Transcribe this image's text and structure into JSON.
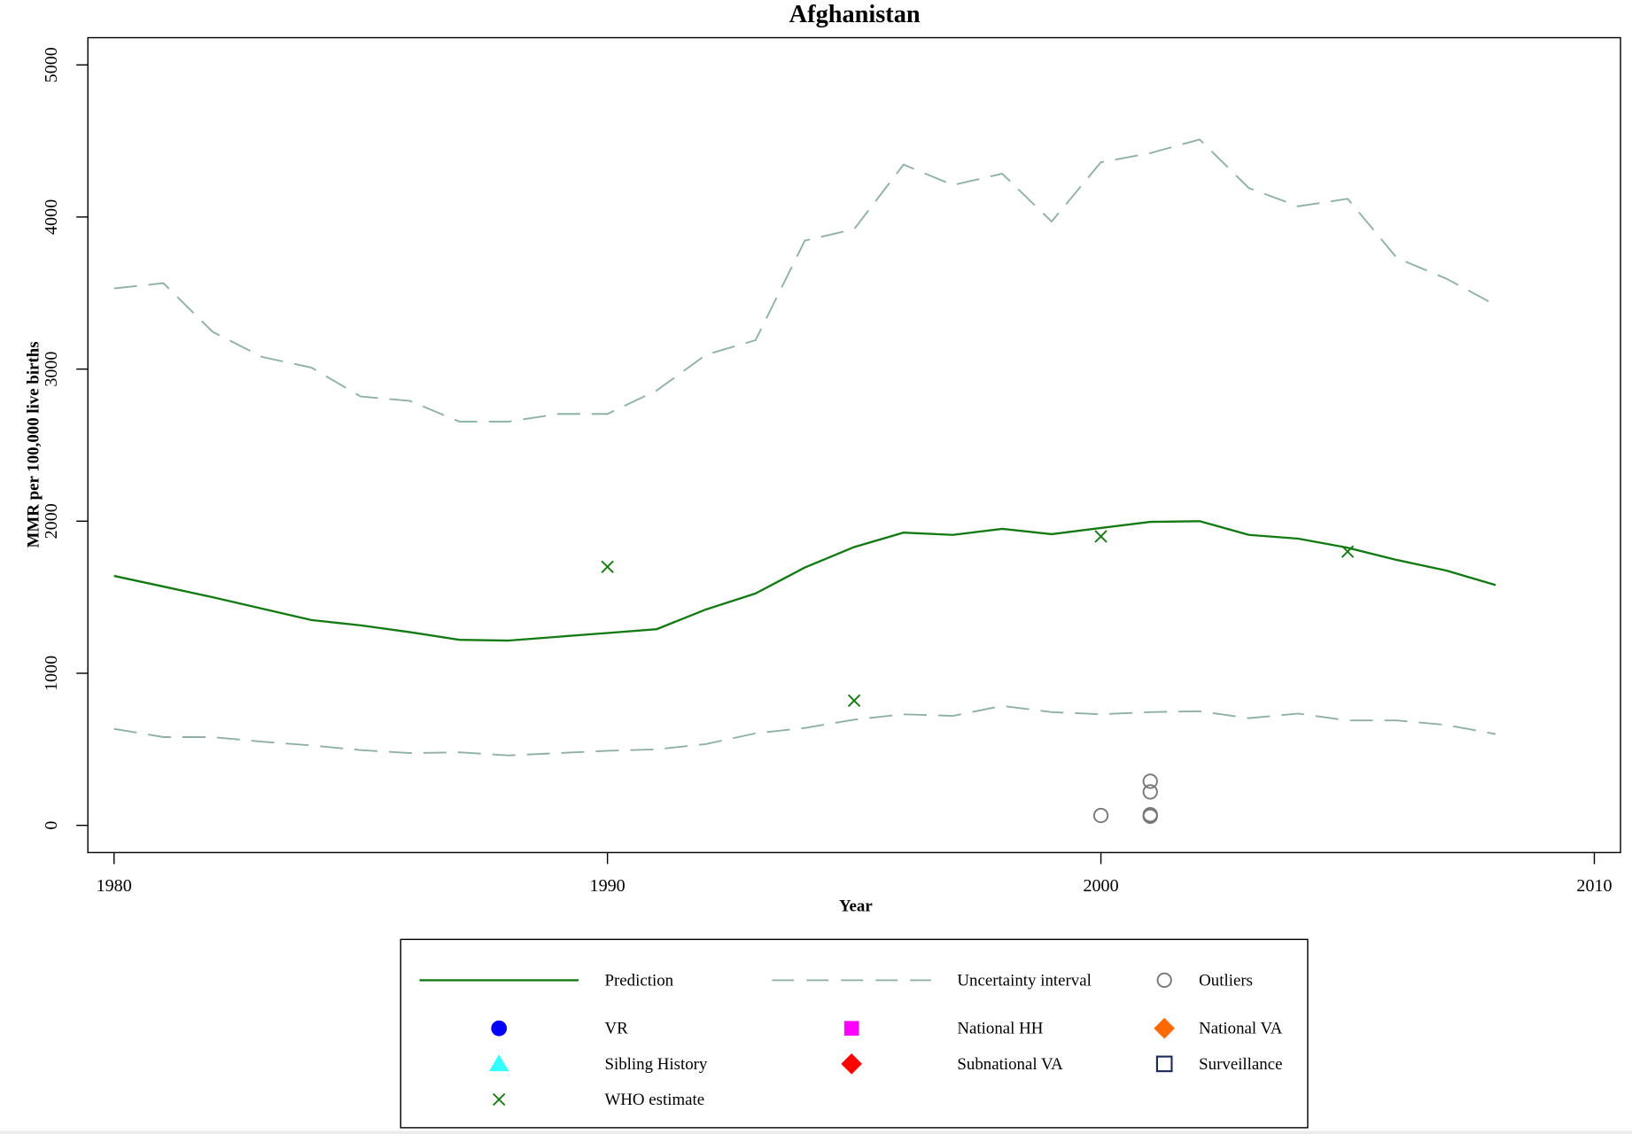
{
  "chart_data": {
    "type": "line",
    "title": "Afghanistan",
    "xlabel": "Year",
    "ylabel": "MMR per 100,000 live births",
    "xlim": [
      1979.47,
      2010.53
    ],
    "ylim": [
      -179,
      5179
    ],
    "x_ticks": [
      1980,
      1990,
      2000,
      2010
    ],
    "y_ticks": [
      0,
      1000,
      2000,
      3000,
      4000,
      5000
    ],
    "grid": false,
    "x": [
      1980,
      1981,
      1982,
      1983,
      1984,
      1985,
      1986,
      1987,
      1988,
      1989,
      1990,
      1991,
      1992,
      1993,
      1994,
      1995,
      1996,
      1997,
      1998,
      1999,
      2000,
      2001,
      2002,
      2003,
      2004,
      2005,
      2006,
      2007,
      2008
    ],
    "series": [
      {
        "name": "Prediction",
        "line_style": "solid",
        "color": "#137a13",
        "values": [
          1640,
          1570,
          1500,
          1425,
          1350,
          1315,
          1270,
          1220,
          1215,
          1240,
          1265,
          1290,
          1420,
          1525,
          1695,
          1830,
          1925,
          1910,
          1950,
          1915,
          1955,
          1995,
          2000,
          1910,
          1885,
          1825,
          1745,
          1675,
          1580
        ]
      },
      {
        "name": "Uncertainty interval",
        "line_style": "dashed",
        "color": "#8fb0a8",
        "upper": [
          3530,
          3565,
          3245,
          3080,
          3010,
          2820,
          2790,
          2655,
          2655,
          2705,
          2705,
          2860,
          3095,
          3190,
          3845,
          3920,
          4345,
          4210,
          4285,
          3970,
          4360,
          4420,
          4510,
          4190,
          4070,
          4120,
          3730,
          3595,
          3420
        ],
        "lower": [
          635,
          580,
          580,
          550,
          525,
          495,
          475,
          480,
          460,
          475,
          490,
          500,
          535,
          605,
          640,
          695,
          730,
          720,
          785,
          745,
          730,
          745,
          750,
          705,
          735,
          690,
          690,
          660,
          600
        ]
      }
    ],
    "markers": [
      {
        "name": "WHO estimate",
        "symbol": "x",
        "color": "#137a13",
        "points": [
          {
            "x": 1990,
            "y": 1700
          },
          {
            "x": 1995,
            "y": 820
          },
          {
            "x": 2000,
            "y": 1900
          },
          {
            "x": 2005,
            "y": 1800
          }
        ]
      },
      {
        "name": "Outliers",
        "symbol": "open-circle",
        "color": "#777777",
        "points": [
          {
            "x": 2000,
            "y": 65
          },
          {
            "x": 2001,
            "y": 290
          },
          {
            "x": 2001,
            "y": 220
          },
          {
            "x": 2001,
            "y": 70
          },
          {
            "x": 2001,
            "y": 60
          }
        ]
      }
    ],
    "legend": {
      "placement": "bottom",
      "entries": [
        {
          "label": "Prediction",
          "symbol": "solid-line",
          "color": "#137a13"
        },
        {
          "label": "Uncertainty interval",
          "symbol": "dashed-line",
          "color": "#8fb0a8"
        },
        {
          "label": "Outliers",
          "symbol": "open-circle",
          "color": "#777777"
        },
        {
          "label": "VR",
          "symbol": "filled-circle",
          "color": "#0000ff"
        },
        {
          "label": "National HH",
          "symbol": "filled-square",
          "color": "#ff00ff"
        },
        {
          "label": "National VA",
          "symbol": "filled-diamond",
          "color": "#ff6a00"
        },
        {
          "label": "Sibling History",
          "symbol": "filled-triangle",
          "color": "#33ffff"
        },
        {
          "label": "Subnational VA",
          "symbol": "filled-diamond",
          "color": "#ff0000"
        },
        {
          "label": "Surveillance",
          "symbol": "open-square",
          "color": "#1c2a5a"
        },
        {
          "label": "WHO estimate",
          "symbol": "x-cross",
          "color": "#137a13"
        }
      ]
    }
  }
}
